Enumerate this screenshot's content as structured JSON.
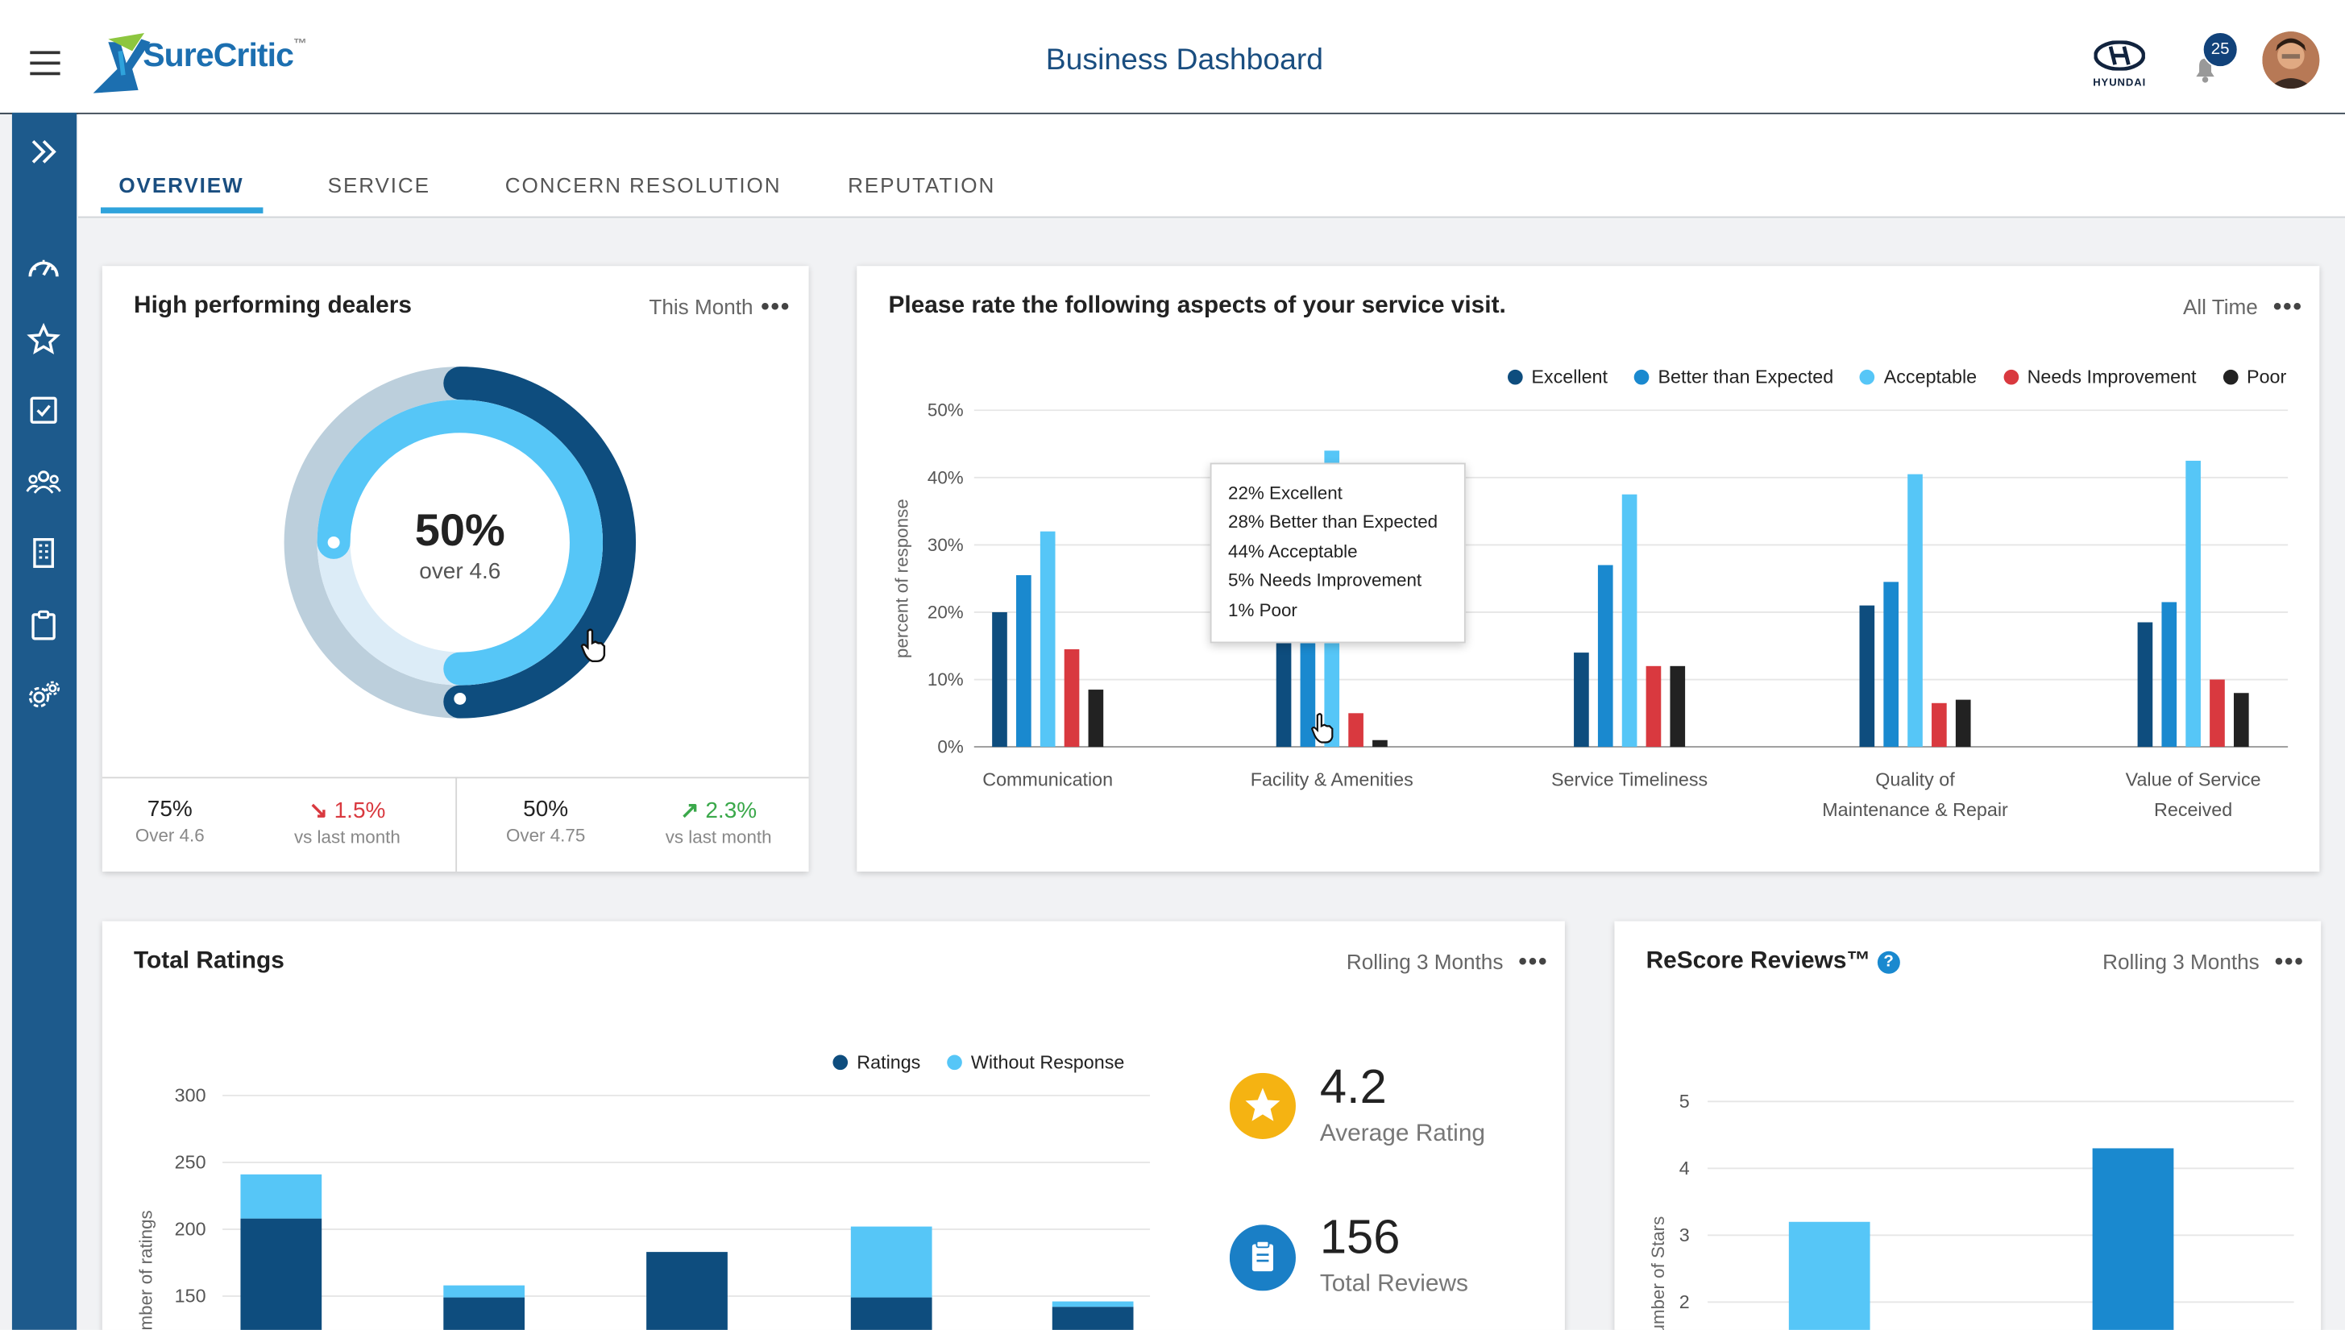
{
  "app": {
    "logo_text": "SureCritic",
    "title": "Business Dashboard",
    "brand_name": "HYUNDAI",
    "notification_count": "25"
  },
  "colors": {
    "navy": "#0e4d7e",
    "blue": "#1a89cf",
    "light_blue": "#56c6f7",
    "red": "#d9393f",
    "black": "#222222",
    "sidebar": "#1d5a8c",
    "accent": "#2fa3dc"
  },
  "sidebar": {
    "items": [
      "expand-icon",
      "dashboard-icon",
      "star-icon",
      "checkbox-icon",
      "users-icon",
      "building-icon",
      "clipboard-icon",
      "settings-icon"
    ]
  },
  "tabs": [
    {
      "label": "OVERVIEW",
      "active": true
    },
    {
      "label": "SERVICE"
    },
    {
      "label": "CONCERN RESOLUTION"
    },
    {
      "label": "REPUTATION"
    }
  ],
  "dealers_card": {
    "title": "High performing dealers",
    "range": "This Month",
    "donut_value": "50%",
    "donut_label": "over 4.6",
    "outer_fraction": 0.5,
    "inner_fraction": 0.75,
    "stats": [
      {
        "value": "75%",
        "sub": "Over 4.6"
      },
      {
        "value": "1.5%",
        "sub": "vs last month",
        "trend": "down"
      },
      {
        "value": "50%",
        "sub": "Over 4.75"
      },
      {
        "value": "2.3%",
        "sub": "vs last month",
        "trend": "up"
      }
    ]
  },
  "aspects_card": {
    "title": "Please rate the following aspects of your service visit.",
    "range": "All Time",
    "chart_data": {
      "type": "bar",
      "title": "Please rate the following aspects of your service visit.",
      "ylabel": "percent of response",
      "ylim": [
        0,
        50
      ],
      "yticks": [
        "0%",
        "10%",
        "20%",
        "30%",
        "40%",
        "50%"
      ],
      "legend": [
        "Excellent",
        "Better than Expected",
        "Acceptable",
        "Needs Improvement",
        "Poor"
      ],
      "categories": [
        {
          "line1": "Communication",
          "line2": ""
        },
        {
          "line1": "Facility & Amenities",
          "line2": ""
        },
        {
          "line1": "Service Timeliness",
          "line2": ""
        },
        {
          "line1": "Quality of",
          "line2": "Maintenance & Repair"
        },
        {
          "line1": "Value of Service",
          "line2": "Received"
        }
      ],
      "series": [
        {
          "name": "Excellent",
          "values": [
            20,
            22,
            14,
            21,
            18.5
          ]
        },
        {
          "name": "Better than Expected",
          "values": [
            25.5,
            28,
            27,
            24.5,
            21.5
          ]
        },
        {
          "name": "Acceptable",
          "values": [
            32,
            44,
            37.5,
            40.5,
            42.5
          ]
        },
        {
          "name": "Needs Improvement",
          "values": [
            14.5,
            5,
            12,
            6.5,
            10
          ]
        },
        {
          "name": "Poor",
          "values": [
            8.5,
            1,
            12,
            7,
            8
          ]
        }
      ]
    },
    "tooltip": [
      "22% Excellent",
      "28% Better than Expected",
      "44% Acceptable",
      "5% Needs Improvement",
      "1% Poor"
    ]
  },
  "total_ratings_card": {
    "title": "Total Ratings",
    "range": "Rolling 3 Months",
    "chart_data": {
      "type": "bar",
      "ylabel": "Number of ratings",
      "yticks": [
        "150",
        "200",
        "250",
        "300"
      ],
      "legend": [
        "Ratings",
        "Without Response"
      ],
      "series": [
        {
          "name": "Ratings",
          "values": [
            208,
            149,
            183,
            149,
            142
          ]
        },
        {
          "name": "Without Response",
          "values": [
            33,
            9,
            0,
            53,
            4
          ]
        }
      ]
    },
    "average_rating": "4.2",
    "average_rating_label": "Average Rating",
    "total_reviews": "156",
    "total_reviews_label": "Total Reviews"
  },
  "rescore_card": {
    "title": "ReScore Reviews™",
    "range": "Rolling 3 Months",
    "chart_data": {
      "type": "bar",
      "ylabel": "Number of Stars",
      "yticks": [
        "2",
        "3",
        "4",
        "5"
      ],
      "values": [
        3.2,
        4.3
      ]
    }
  }
}
